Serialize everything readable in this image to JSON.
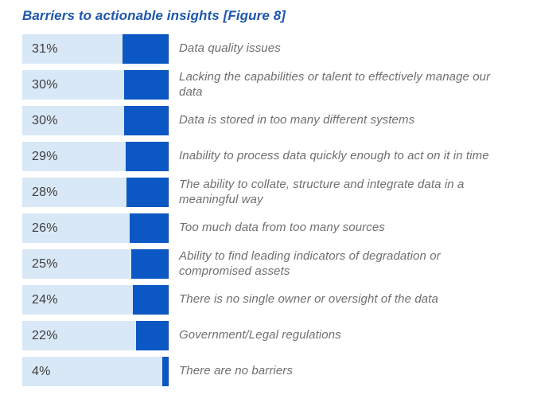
{
  "title": "Barriers to actionable insights [Figure 8]",
  "colors": {
    "title_blue": "#1e57ac",
    "bar_blue": "#0b57c4",
    "track_light_blue": "#d9e8f7",
    "value_text": "#3d3d3d",
    "label_text": "#6f6f6f",
    "background": "#ffffff"
  },
  "chart_data": {
    "type": "bar",
    "orientation": "horizontal",
    "title": "Barriers to actionable insights [Figure 8]",
    "unit": "%",
    "xlim": [
      0,
      100
    ],
    "grid": false,
    "legend": false,
    "bar_alignment": "right-aligned inside full-width light track",
    "categories": [
      "Data quality issues",
      "Lacking the capabilities or talent to effectively manage our data",
      "Data is stored in too many different systems",
      "Inability to process data quickly enough to act on it in time",
      "The ability to collate, structure and integrate data in a meaningful way",
      "Too much data from too many sources",
      "Ability to find leading indicators of degradation or compromised assets",
      "There is no single owner or oversight of the data",
      "Government/Legal regulations",
      "There are no barriers"
    ],
    "values": [
      31,
      30,
      30,
      29,
      28,
      26,
      25,
      24,
      22,
      4
    ],
    "value_labels": [
      "31%",
      "30%",
      "30%",
      "29%",
      "28%",
      "26%",
      "25%",
      "24%",
      "22%",
      "4%"
    ]
  }
}
